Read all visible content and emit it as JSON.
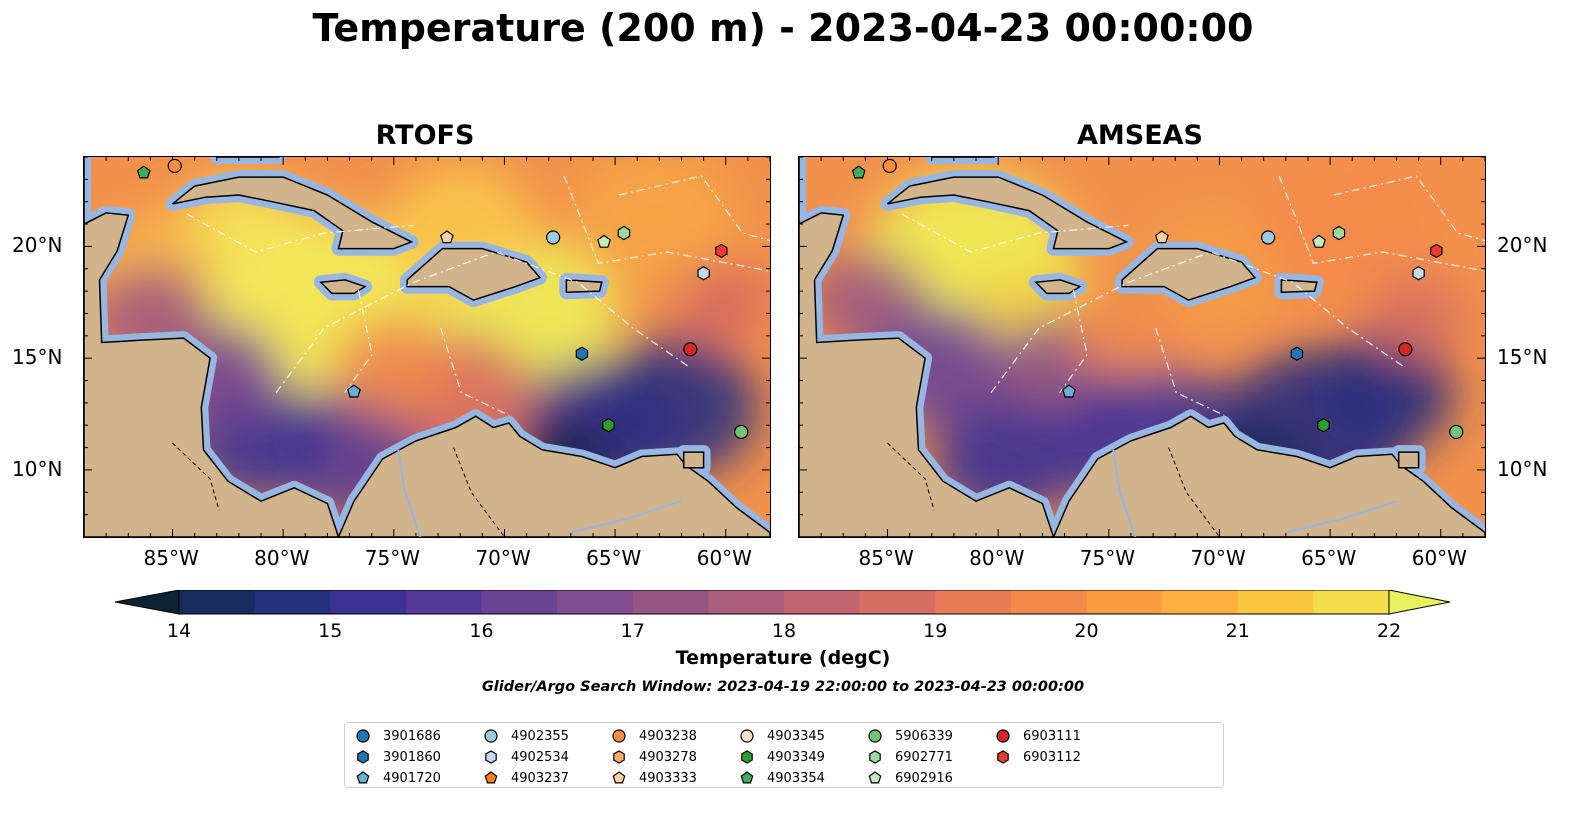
{
  "title": "Temperature (200 m) - 2023-04-23 00:00:00",
  "panels": [
    {
      "key": "rtofs",
      "title": "RTOFS"
    },
    {
      "key": "amseas",
      "title": "AMSEAS"
    }
  ],
  "lon_labels": [
    "85°W",
    "80°W",
    "75°W",
    "70°W",
    "65°W",
    "60°W"
  ],
  "lat_labels": [
    "20°N",
    "15°N",
    "10°N"
  ],
  "map_extent": {
    "lon": [
      -89,
      -58
    ],
    "lat": [
      7,
      24
    ]
  },
  "colorbar": {
    "label": "Temperature (degC)",
    "ticks": [
      "14",
      "15",
      "16",
      "17",
      "18",
      "19",
      "20",
      "21",
      "22"
    ],
    "range": [
      14,
      22
    ],
    "extend": "both",
    "colors": [
      "#0b2333",
      "#172c5c",
      "#23317f",
      "#3a3394",
      "#54399a",
      "#6b4395",
      "#804d8e",
      "#965685",
      "#ac5f7c",
      "#c26570",
      "#d66e63",
      "#e97a58",
      "#f5894b",
      "#fb9c42",
      "#fcb03f",
      "#f9c640",
      "#f2dd4a",
      "#e9f25e"
    ]
  },
  "search_window": "Glider/Argo Search Window: 2023-04-19 22:00:00 to 2023-04-23 00:00:00",
  "legend_items": [
    {
      "id": "3901686",
      "marker": "circle",
      "color": "#1f77b4"
    },
    {
      "id": "3901860",
      "marker": "hexagon",
      "color": "#1f77b4"
    },
    {
      "id": "4901720",
      "marker": "pentagon",
      "color": "#6baed6"
    },
    {
      "id": "4902355",
      "marker": "circle",
      "color": "#9ecae1"
    },
    {
      "id": "4902534",
      "marker": "hexagon",
      "color": "#c6dbef"
    },
    {
      "id": "4903237",
      "marker": "pentagon",
      "color": "#ff7f0e"
    },
    {
      "id": "4903238",
      "marker": "circle",
      "color": "#fd8d3c"
    },
    {
      "id": "4903278",
      "marker": "hexagon",
      "color": "#fdae6b"
    },
    {
      "id": "4903333",
      "marker": "pentagon",
      "color": "#fdd0a2"
    },
    {
      "id": "4903345",
      "marker": "circle",
      "color": "#fde0c5"
    },
    {
      "id": "4903349",
      "marker": "hexagon",
      "color": "#2ca02c"
    },
    {
      "id": "4903354",
      "marker": "pentagon",
      "color": "#41ab5d"
    },
    {
      "id": "5906339",
      "marker": "circle",
      "color": "#74c476"
    },
    {
      "id": "6902771",
      "marker": "hexagon",
      "color": "#a1d99b"
    },
    {
      "id": "6902916",
      "marker": "pentagon",
      "color": "#c7e9c0"
    },
    {
      "id": "6903111",
      "marker": "circle",
      "color": "#d62728"
    },
    {
      "id": "6903112",
      "marker": "hexagon",
      "color": "#ef3b2c"
    }
  ],
  "floats": [
    {
      "id": "4903354",
      "lon": -86.3,
      "lat": 23.3
    },
    {
      "id": "4903238",
      "lon": -84.9,
      "lat": 23.6
    },
    {
      "id": "4903333",
      "lon": -72.6,
      "lat": 20.4
    },
    {
      "id": "4902355",
      "lon": -67.8,
      "lat": 20.4
    },
    {
      "id": "6902916",
      "lon": -65.5,
      "lat": 20.2
    },
    {
      "id": "6902771",
      "lon": -64.6,
      "lat": 20.6
    },
    {
      "id": "6903112",
      "lon": -60.2,
      "lat": 19.8
    },
    {
      "id": "4902534",
      "lon": -61.0,
      "lat": 18.8
    },
    {
      "id": "3901860",
      "lon": -66.5,
      "lat": 15.2
    },
    {
      "id": "6903111",
      "lon": -61.6,
      "lat": 15.4
    },
    {
      "id": "4901720",
      "lon": -76.8,
      "lat": 13.5
    },
    {
      "id": "4903349",
      "lon": -65.3,
      "lat": 12.0
    },
    {
      "id": "5906339",
      "lon": -59.3,
      "lat": 11.7
    }
  ]
}
